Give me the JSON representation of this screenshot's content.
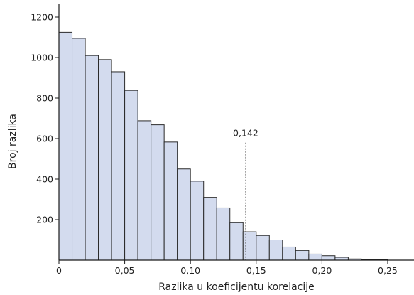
{
  "chart_data": {
    "type": "bar",
    "xlabel": "Razlika u koeficijentu korelacije",
    "ylabel": "Broj razlika",
    "xlim": [
      0,
      0.27
    ],
    "ylim": [
      0,
      1250
    ],
    "bin_width": 0.01,
    "x": [
      0.005,
      0.015,
      0.025,
      0.035,
      0.045,
      0.055,
      0.065,
      0.075,
      0.085,
      0.095,
      0.105,
      0.115,
      0.125,
      0.135,
      0.145,
      0.155,
      0.165,
      0.175,
      0.185,
      0.195,
      0.205,
      0.215,
      0.225,
      0.235,
      0.245
    ],
    "values": [
      1125,
      1095,
      1010,
      990,
      930,
      838,
      688,
      668,
      583,
      450,
      390,
      310,
      258,
      185,
      140,
      122,
      100,
      65,
      48,
      30,
      22,
      14,
      6,
      3,
      2
    ],
    "x_ticks": [
      0,
      0.05,
      0.1,
      0.15,
      0.2,
      0.25
    ],
    "x_tick_labels": [
      "0",
      "0,05",
      "0,10",
      "0,15",
      "0,20",
      "0,25"
    ],
    "y_ticks": [
      200,
      400,
      600,
      800,
      1000,
      1200
    ],
    "y_tick_labels": [
      "200",
      "400",
      "600",
      "800",
      "1000",
      "1200"
    ],
    "annotation": {
      "x": 0.142,
      "y_top": 580,
      "label": "0,142",
      "style": "dotted"
    },
    "colors": {
      "bar_fill": "#d3dbee",
      "bar_stroke": "#2a2a2a",
      "axis": "#1a1a1a",
      "annotation_line": "#555555"
    },
    "grid": false,
    "legend": "none"
  }
}
